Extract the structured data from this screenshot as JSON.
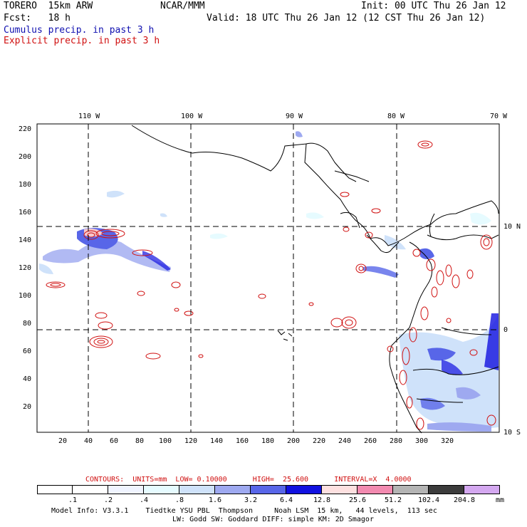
{
  "header": {
    "model": "TORERO  15km ARW",
    "org": "NCAR/MMM",
    "init": "Init: 00 UTC Thu 26 Jan 12",
    "fcst": "Fcst:   18 h",
    "valid": "Valid: 18 UTC Thu 26 Jan 12 (12 CST Thu 26 Jan 12)",
    "field1": "Cumulus precip. in past 3 h",
    "field2": "Explicit precip. in past 3 h"
  },
  "map": {
    "lon_labels": [
      "110 W",
      "100 W",
      "90 W",
      "80 W",
      "70 W"
    ],
    "lat_labels": [
      "10 N",
      "0",
      "10 S"
    ],
    "y_ticks": [
      "220",
      "200",
      "180",
      "160",
      "140",
      "120",
      "100",
      "80",
      "60",
      "40",
      "20"
    ],
    "x_ticks": [
      "20",
      "40",
      "60",
      "80",
      "100",
      "120",
      "140",
      "160",
      "180",
      "200",
      "220",
      "240",
      "260",
      "280",
      "300",
      "320"
    ]
  },
  "contour_info": {
    "label": "CONTOURS:  UNITS=mm  LOW= 0.10000      HIGH=  25.600      INTERVAL=X  4.0000"
  },
  "colorbar": {
    "colors": [
      "#ffffff",
      "#ffffff",
      "#f0f4ff",
      "#e6fbff",
      "#cfe2fa",
      "#9ea9f0",
      "#5866e8",
      "#1111e0",
      "#fde0e0",
      "#f28ab0",
      "#b4b4b4",
      "#3c3c3c",
      "#d4a8f0"
    ],
    "labels": [
      ".1",
      ".2",
      ".4",
      ".8",
      "1.6",
      "3.2",
      "6.4",
      "12.8",
      "25.6",
      "51.2",
      "102.4",
      "204.8"
    ],
    "unit": "mm"
  },
  "footer": {
    "line1": "Model Info: V3.3.1    Tiedtke YSU PBL  Thompson     Noah LSM  15 km,   44 levels,  113 sec",
    "line2": "LW: Godd SW: Goddard DIFF: simple KM: 2D Smagor"
  }
}
